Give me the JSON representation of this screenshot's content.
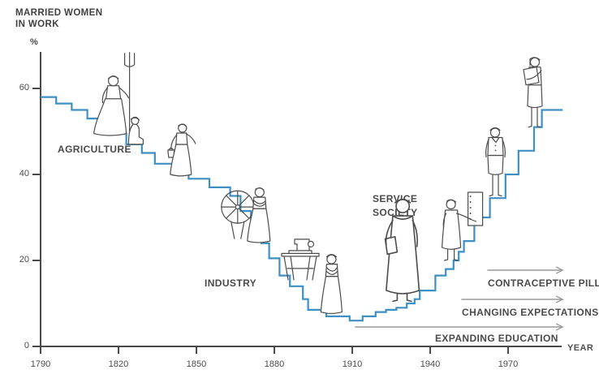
{
  "title": {
    "line1": "MARRIED WOMEN",
    "line2": "IN WORK"
  },
  "colors": {
    "line": "#3d8fc4",
    "axis": "#4a4a4a",
    "text": "#4a4a4a",
    "arrow": "#9c9c9c",
    "figure_stroke": "#4d4d4d",
    "background": "#ffffff"
  },
  "axes": {
    "y_unit": "%",
    "y_ticks": [
      0,
      20,
      40,
      60
    ],
    "x_ticks": [
      1790,
      1820,
      1850,
      1880,
      1910,
      1940,
      1970
    ],
    "x_label": "YEAR"
  },
  "era_labels": [
    {
      "id": "agriculture",
      "text": "AGRICULTURE"
    },
    {
      "id": "industry",
      "text": "INDUSTRY"
    },
    {
      "id": "service-society",
      "lines": [
        "SERVICE",
        "SOCIETY"
      ]
    }
  ],
  "annotations": [
    {
      "id": "contraceptive-pill",
      "text": "CONTRACEPTIVE PILL",
      "from_year": 1962,
      "to_year": 1991
    },
    {
      "id": "changing-expectations",
      "text": "CHANGING EXPECTATIONS",
      "from_year": 1952,
      "to_year": 1991
    },
    {
      "id": "expanding-education",
      "text": "EXPANDING EDUCATION",
      "from_year": 1911,
      "to_year": 1991
    }
  ],
  "chart_data": {
    "type": "line",
    "step": true,
    "title": "Married women in work (%), 1790-1990",
    "xlabel": "YEAR",
    "ylabel": "%",
    "xlim": [
      1790,
      1992
    ],
    "ylim": [
      0,
      68
    ],
    "grid": false,
    "legend": false,
    "points": [
      [
        1790,
        58
      ],
      [
        1796,
        56.5
      ],
      [
        1802,
        55
      ],
      [
        1808,
        53
      ],
      [
        1814,
        51
      ],
      [
        1819,
        49.5
      ],
      [
        1823,
        47
      ],
      [
        1829,
        45
      ],
      [
        1834,
        42.5
      ],
      [
        1841,
        40.5
      ],
      [
        1847,
        39
      ],
      [
        1855,
        37
      ],
      [
        1863,
        35
      ],
      [
        1867,
        31.5
      ],
      [
        1871,
        27.5
      ],
      [
        1875,
        24
      ],
      [
        1878,
        20.5
      ],
      [
        1882,
        16.5
      ],
      [
        1886,
        14
      ],
      [
        1891,
        11
      ],
      [
        1893,
        8.5
      ],
      [
        1900,
        7
      ],
      [
        1909,
        6
      ],
      [
        1914,
        7
      ],
      [
        1919,
        8
      ],
      [
        1923,
        8.5
      ],
      [
        1927,
        9
      ],
      [
        1931,
        10
      ],
      [
        1934,
        11
      ],
      [
        1936,
        13
      ],
      [
        1942,
        16.5
      ],
      [
        1946,
        18
      ],
      [
        1949,
        20
      ],
      [
        1951,
        22
      ],
      [
        1953,
        24.5
      ],
      [
        1957,
        30
      ],
      [
        1963,
        34.5
      ],
      [
        1969,
        40
      ],
      [
        1974,
        45.5
      ],
      [
        1980,
        51
      ],
      [
        1983,
        55
      ],
      [
        1991,
        55
      ]
    ]
  },
  "figures": [
    {
      "id": "pitchfork-woman",
      "desc": "farm woman holding pitchfork",
      "year": 1818,
      "pct": 49.5,
      "scale": 1
    },
    {
      "id": "sitting-child",
      "desc": "child seated on step",
      "year": 1827,
      "pct": 47,
      "scale": 1
    },
    {
      "id": "bucket-woman",
      "desc": "woman carrying pail",
      "year": 1844,
      "pct": 40,
      "scale": 1
    },
    {
      "id": "spinning-wheel-woman",
      "desc": "woman beside spinning wheel",
      "year": 1874,
      "pct": 24.5,
      "scale": 1
    },
    {
      "id": "sewing-machine",
      "desc": "sewing machine on table",
      "year": 1890,
      "pct": 15.5,
      "scale": 1
    },
    {
      "id": "mill-woman",
      "desc": "industrial worker woman",
      "year": 1902,
      "pct": 8,
      "scale": 1
    },
    {
      "id": "service-woman",
      "desc": "office woman with folder",
      "year": 1929,
      "pct": 10.5,
      "scale": 1.35
    },
    {
      "id": "switchboard-woman",
      "desc": "woman operating switchboard",
      "year": 1948,
      "pct": 20,
      "scale": 1
    },
    {
      "id": "suit-woman",
      "desc": "woman in skirt suit",
      "year": 1965,
      "pct": 35,
      "scale": 1
    },
    {
      "id": "modern-woman",
      "desc": "modern woman holding files",
      "year": 1980,
      "pct": 51,
      "scale": 1
    }
  ]
}
